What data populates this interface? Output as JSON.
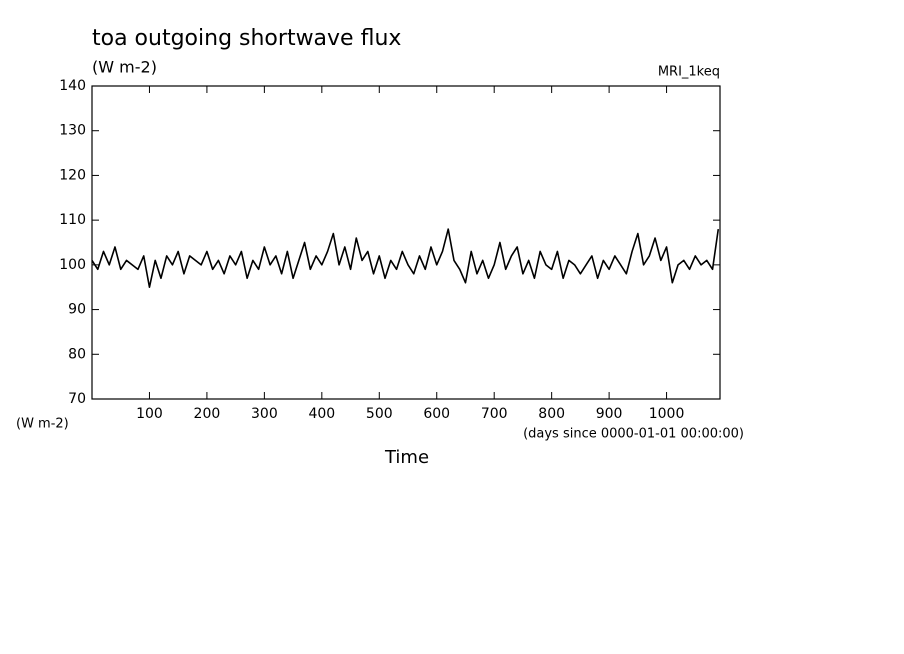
{
  "chart_data": {
    "type": "line",
    "title": "toa outgoing shortwave flux",
    "subtitle": "(W m-2)",
    "annotation": "MRI_1keq",
    "y_label": "(W m-2)",
    "x_units": "(days since 0000-01-01 00:00:00)",
    "x_label": "Time",
    "x": [
      0,
      10,
      20,
      30,
      40,
      50,
      60,
      70,
      80,
      90,
      100,
      110,
      120,
      130,
      140,
      150,
      160,
      170,
      180,
      190,
      200,
      210,
      220,
      230,
      240,
      250,
      260,
      270,
      280,
      290,
      300,
      310,
      320,
      330,
      340,
      350,
      360,
      370,
      380,
      390,
      400,
      410,
      420,
      430,
      440,
      450,
      460,
      470,
      480,
      490,
      500,
      510,
      520,
      530,
      540,
      550,
      560,
      570,
      580,
      590,
      600,
      610,
      620,
      630,
      640,
      650,
      660,
      670,
      680,
      690,
      700,
      710,
      720,
      730,
      740,
      750,
      760,
      770,
      780,
      790,
      800,
      810,
      820,
      830,
      840,
      850,
      860,
      870,
      880,
      890,
      900,
      910,
      920,
      930,
      940,
      950,
      960,
      970,
      980,
      990,
      1000,
      1010,
      1020,
      1030,
      1040,
      1050,
      1060,
      1070,
      1080,
      1090
    ],
    "series": [
      {
        "name": "toa outgoing shortwave flux",
        "color": "#000000",
        "values": [
          101,
          99,
          103,
          100,
          104,
          99,
          101,
          100,
          99,
          102,
          95,
          101,
          97,
          102,
          100,
          103,
          98,
          102,
          101,
          100,
          103,
          99,
          101,
          98,
          102,
          100,
          103,
          97,
          101,
          99,
          104,
          100,
          102,
          98,
          103,
          97,
          101,
          105,
          99,
          102,
          100,
          103,
          107,
          100,
          104,
          99,
          106,
          101,
          103,
          98,
          102,
          97,
          101,
          99,
          103,
          100,
          98,
          102,
          99,
          104,
          100,
          103,
          108,
          101,
          99,
          96,
          103,
          98,
          101,
          97,
          100,
          105,
          99,
          102,
          104,
          98,
          101,
          97,
          103,
          100,
          99,
          103,
          97,
          101,
          100,
          98,
          100,
          102,
          97,
          101,
          99,
          102,
          100,
          98,
          103,
          107,
          100,
          102,
          106,
          101,
          104,
          96,
          100,
          101,
          99,
          102,
          100,
          101,
          99,
          108
        ]
      }
    ],
    "xlim": [
      0,
      1093
    ],
    "ylim": [
      70,
      140
    ],
    "xticks": [
      100,
      200,
      300,
      400,
      500,
      600,
      700,
      800,
      900,
      1000
    ],
    "yticks": [
      70,
      80,
      90,
      100,
      110,
      120,
      130,
      140
    ]
  }
}
